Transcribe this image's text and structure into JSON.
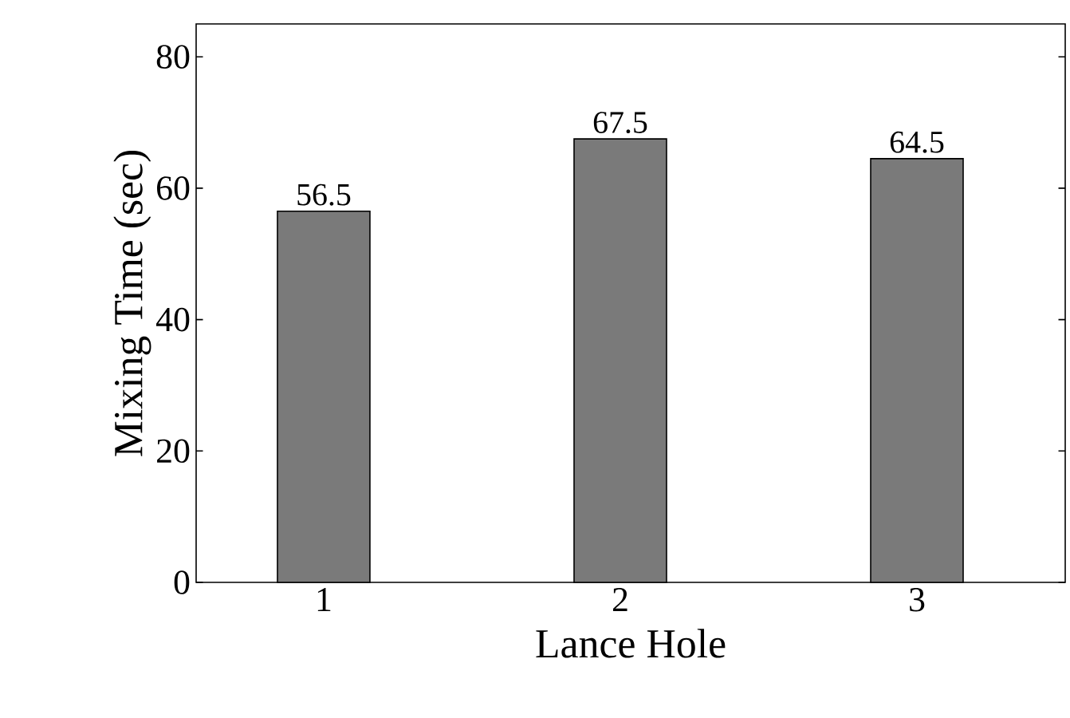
{
  "chart_data": {
    "type": "bar",
    "xlabel": "Lance Hole",
    "ylabel": "Mixing Time (sec)",
    "categories": [
      "1",
      "2",
      "3"
    ],
    "values": [
      56.5,
      67.5,
      64.5
    ],
    "color": "#7a7a7a",
    "data_labels": true,
    "ylim": [
      0,
      85
    ],
    "yticks": [
      0,
      20,
      40,
      60,
      80
    ]
  }
}
